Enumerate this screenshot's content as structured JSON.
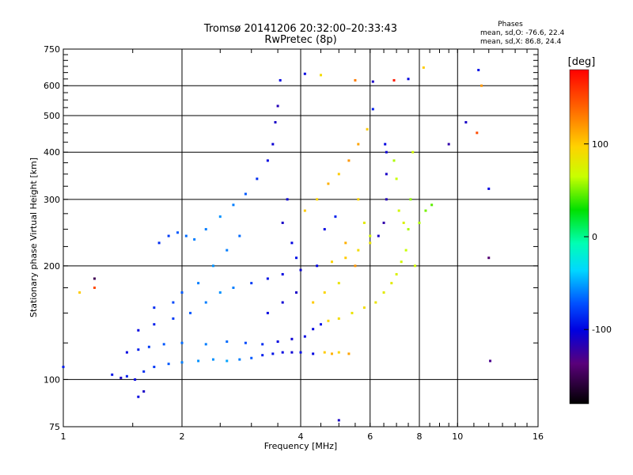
{
  "chart_data": {
    "type": "scatter",
    "title": "Tromsø 20141206 20:32:00–20:33:43",
    "subtitle": "RwPretec (8p)",
    "xlabel": "Frequency [MHz]",
    "ylabel": "Stationary phase Virtual Height [km]",
    "x_scale": "log",
    "y_scale": "log",
    "xlim": [
      1,
      16
    ],
    "ylim": [
      75,
      750
    ],
    "x_ticks": [
      1,
      2,
      4,
      6,
      8,
      10,
      16
    ],
    "x_tick_labels": [
      "1",
      "2",
      "4",
      "6",
      "8",
      "10",
      "16"
    ],
    "y_ticks": [
      75,
      100,
      200,
      300,
      400,
      500,
      600,
      750
    ],
    "y_tick_labels": [
      "75",
      "100",
      "200",
      "300",
      "400",
      "500",
      "600",
      "750"
    ],
    "grid": true,
    "phases_box": {
      "title": "Phases",
      "line1": "mean, sd,O:  -76.6, 22.4",
      "line2": "mean, sd,X:  86.8, 24.4"
    },
    "colorbar": {
      "label": "[deg]",
      "ticks": [
        100,
        0,
        -100
      ],
      "tick_labels": [
        "100",
        "0",
        "-100"
      ],
      "range": [
        -180,
        180
      ],
      "colormap": "rainbow"
    },
    "series": [
      {
        "points": [
          [
            1.33,
            103,
            -95
          ],
          [
            1.4,
            101,
            -110
          ],
          [
            1.45,
            102,
            -90
          ],
          [
            1.52,
            100,
            -100
          ],
          [
            1.6,
            105,
            -85
          ],
          [
            1.7,
            108,
            -80
          ],
          [
            1.85,
            110,
            -70
          ],
          [
            2.0,
            111,
            -60
          ],
          [
            2.2,
            112,
            -55
          ],
          [
            2.4,
            113,
            -55
          ],
          [
            2.6,
            112,
            -50
          ],
          [
            2.8,
            113,
            -60
          ],
          [
            3.0,
            114,
            -70
          ],
          [
            3.2,
            116,
            -90
          ],
          [
            3.4,
            117,
            -95
          ],
          [
            3.6,
            118,
            -100
          ],
          [
            3.8,
            118,
            -105
          ],
          [
            4.0,
            118,
            -95
          ],
          [
            4.3,
            117,
            -100
          ],
          [
            4.6,
            118,
            100
          ],
          [
            4.8,
            117,
            110
          ],
          [
            5.0,
            118,
            95
          ],
          [
            5.3,
            117,
            115
          ],
          [
            1.45,
            118,
            -100
          ],
          [
            1.55,
            120,
            -90
          ],
          [
            1.65,
            122,
            -80
          ],
          [
            1.8,
            124,
            -70
          ],
          [
            2.0,
            125,
            -65
          ],
          [
            2.3,
            124,
            -60
          ],
          [
            2.6,
            126,
            -65
          ],
          [
            2.9,
            125,
            -75
          ],
          [
            3.2,
            124,
            -85
          ],
          [
            3.5,
            126,
            -100
          ],
          [
            3.8,
            128,
            -105
          ],
          [
            4.1,
            130,
            -100
          ],
          [
            4.3,
            136,
            -100
          ],
          [
            4.5,
            140,
            -95
          ],
          [
            4.7,
            143,
            95
          ],
          [
            5.0,
            145,
            90
          ],
          [
            5.4,
            150,
            85
          ],
          [
            5.8,
            155,
            90
          ],
          [
            6.2,
            160,
            85
          ],
          [
            6.5,
            170,
            80
          ],
          [
            6.8,
            180,
            80
          ],
          [
            7.0,
            190,
            75
          ],
          [
            7.2,
            205,
            70
          ],
          [
            7.4,
            220,
            65
          ],
          [
            7.5,
            250,
            60
          ],
          [
            7.6,
            300,
            55
          ],
          [
            7.7,
            400,
            70
          ],
          [
            1.55,
            135,
            -100
          ],
          [
            1.7,
            140,
            -90
          ],
          [
            1.9,
            145,
            -80
          ],
          [
            2.1,
            150,
            -70
          ],
          [
            2.3,
            160,
            -60
          ],
          [
            2.5,
            170,
            -55
          ],
          [
            2.7,
            175,
            -60
          ],
          [
            3.0,
            180,
            -80
          ],
          [
            3.3,
            185,
            -95
          ],
          [
            3.6,
            190,
            -100
          ],
          [
            4.0,
            195,
            -105
          ],
          [
            4.4,
            200,
            -100
          ],
          [
            4.8,
            205,
            95
          ],
          [
            5.2,
            210,
            100
          ],
          [
            5.6,
            220,
            90
          ],
          [
            6.0,
            230,
            85
          ],
          [
            6.3,
            240,
            -110
          ],
          [
            6.5,
            260,
            -120
          ],
          [
            6.6,
            300,
            -115
          ],
          [
            6.6,
            350,
            -110
          ],
          [
            6.6,
            400,
            -105
          ],
          [
            6.55,
            420,
            -100
          ],
          [
            1.75,
            230,
            -85
          ],
          [
            1.85,
            240,
            -80
          ],
          [
            1.95,
            245,
            -70
          ],
          [
            2.05,
            240,
            -65
          ],
          [
            2.15,
            235,
            -60
          ],
          [
            2.3,
            250,
            -60
          ],
          [
            2.5,
            270,
            -55
          ],
          [
            2.7,
            290,
            -60
          ],
          [
            2.9,
            310,
            -70
          ],
          [
            3.1,
            340,
            -85
          ],
          [
            3.3,
            380,
            -100
          ],
          [
            3.4,
            420,
            -105
          ],
          [
            3.45,
            480,
            -110
          ],
          [
            3.5,
            530,
            -115
          ],
          [
            3.55,
            620,
            -100
          ],
          [
            3.7,
            300,
            -105
          ],
          [
            3.6,
            260,
            -110
          ],
          [
            3.8,
            230,
            -100
          ],
          [
            3.9,
            210,
            -95
          ],
          [
            4.1,
            280,
            100
          ],
          [
            4.4,
            300,
            95
          ],
          [
            4.7,
            330,
            110
          ],
          [
            5.0,
            350,
            100
          ],
          [
            5.3,
            380,
            120
          ],
          [
            5.6,
            420,
            115
          ],
          [
            5.9,
            460,
            100
          ],
          [
            6.1,
            520,
            -90
          ],
          [
            5.5,
            620,
            130
          ],
          [
            4.5,
            640,
            90
          ],
          [
            4.1,
            645,
            -100
          ],
          [
            5.6,
            300,
            95
          ],
          [
            5.8,
            260,
            80
          ],
          [
            6.0,
            240,
            70
          ],
          [
            4.6,
            250,
            -100
          ],
          [
            4.9,
            270,
            -90
          ],
          [
            5.2,
            230,
            110
          ],
          [
            5.5,
            200,
            120
          ],
          [
            4.3,
            160,
            100
          ],
          [
            4.6,
            170,
            95
          ],
          [
            5.0,
            180,
            85
          ],
          [
            3.3,
            150,
            -100
          ],
          [
            3.6,
            160,
            -105
          ],
          [
            3.9,
            170,
            -110
          ],
          [
            2.2,
            180,
            -60
          ],
          [
            2.4,
            200,
            -55
          ],
          [
            2.6,
            220,
            -60
          ],
          [
            2.8,
            240,
            -65
          ],
          [
            1.9,
            160,
            -75
          ],
          [
            2.0,
            170,
            -70
          ],
          [
            1.7,
            155,
            -85
          ],
          [
            6.9,
            380,
            60
          ],
          [
            7.0,
            340,
            65
          ],
          [
            7.1,
            280,
            70
          ],
          [
            7.3,
            260,
            75
          ],
          [
            7.8,
            200,
            70
          ],
          [
            8.0,
            260,
            60
          ],
          [
            8.3,
            280,
            50
          ],
          [
            8.6,
            290,
            45
          ],
          [
            9.5,
            420,
            -120
          ],
          [
            10.5,
            480,
            -110
          ],
          [
            11.2,
            450,
            150
          ],
          [
            11.5,
            600,
            120
          ],
          [
            12.0,
            320,
            -100
          ],
          [
            12.0,
            210,
            -140
          ],
          [
            12.1,
            112,
            -130
          ],
          [
            11.3,
            660,
            -95
          ],
          [
            6.9,
            620,
            170
          ],
          [
            7.5,
            625,
            -100
          ],
          [
            8.2,
            670,
            100
          ],
          [
            1.2,
            185,
            -150
          ],
          [
            1.2,
            175,
            150
          ],
          [
            1.1,
            170,
            100
          ],
          [
            1.0,
            108,
            -90
          ],
          [
            1.55,
            90,
            -100
          ],
          [
            1.6,
            93,
            -110
          ],
          [
            5.0,
            78,
            -110
          ],
          [
            6.1,
            615,
            -110
          ]
        ]
      }
    ]
  }
}
